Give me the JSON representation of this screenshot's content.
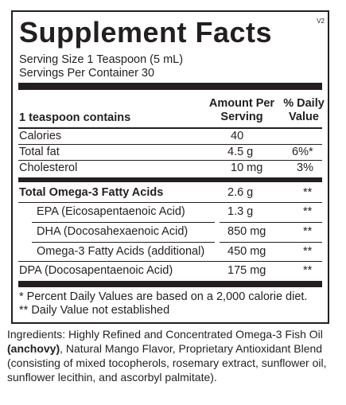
{
  "label": {
    "title": "Supplement Facts",
    "version": "V2",
    "serving_size": "Serving Size 1 Teaspoon (5 mL)",
    "servings_per_container": "Servings Per Container 30",
    "header": {
      "contains": "1 teaspoon contains",
      "amount_line1": "Amount Per",
      "amount_line2": "Serving",
      "dv_line1": "% Daily",
      "dv_line2": "Value"
    },
    "rows": [
      {
        "name": "Calories",
        "amount": "40",
        "dv": ""
      },
      {
        "name": "Total fat",
        "amount": "4.5 g",
        "dv": "6%*"
      },
      {
        "name": "Cholesterol",
        "amount": "10 mg",
        "dv": "3%"
      },
      {
        "name": "Total Omega-3 Fatty Acids",
        "amount": "2.6 g",
        "dv": "**"
      },
      {
        "name": "EPA (Eicosapentaenoic Acid)",
        "amount": "1.3 g",
        "dv": "**"
      },
      {
        "name": "DHA (Docosahexaenoic Acid)",
        "amount": "850 mg",
        "dv": "**"
      },
      {
        "name": "Omega-3 Fatty Acids (additional)",
        "amount": "450 mg",
        "dv": "**"
      },
      {
        "name": "DPA (Docosapentaenoic Acid)",
        "amount": "175 mg",
        "dv": "**"
      }
    ],
    "footnote1": "* Percent Daily Values are based on a 2,000 calorie diet.",
    "footnote2": "** Daily Value not established"
  },
  "ingredients": {
    "prefix": "Ingredients: Highly Refined and Concentrated Omega-3 Fish Oil",
    "bold": "(anchovy)",
    "suffix": ", Natural Mango Flavor, Proprietary Antioxidant Blend (consisting of mixed tocopherols,  rosemary extract, sunflower oil, sunflower lecithin, and ascorbyl palmitate)."
  }
}
